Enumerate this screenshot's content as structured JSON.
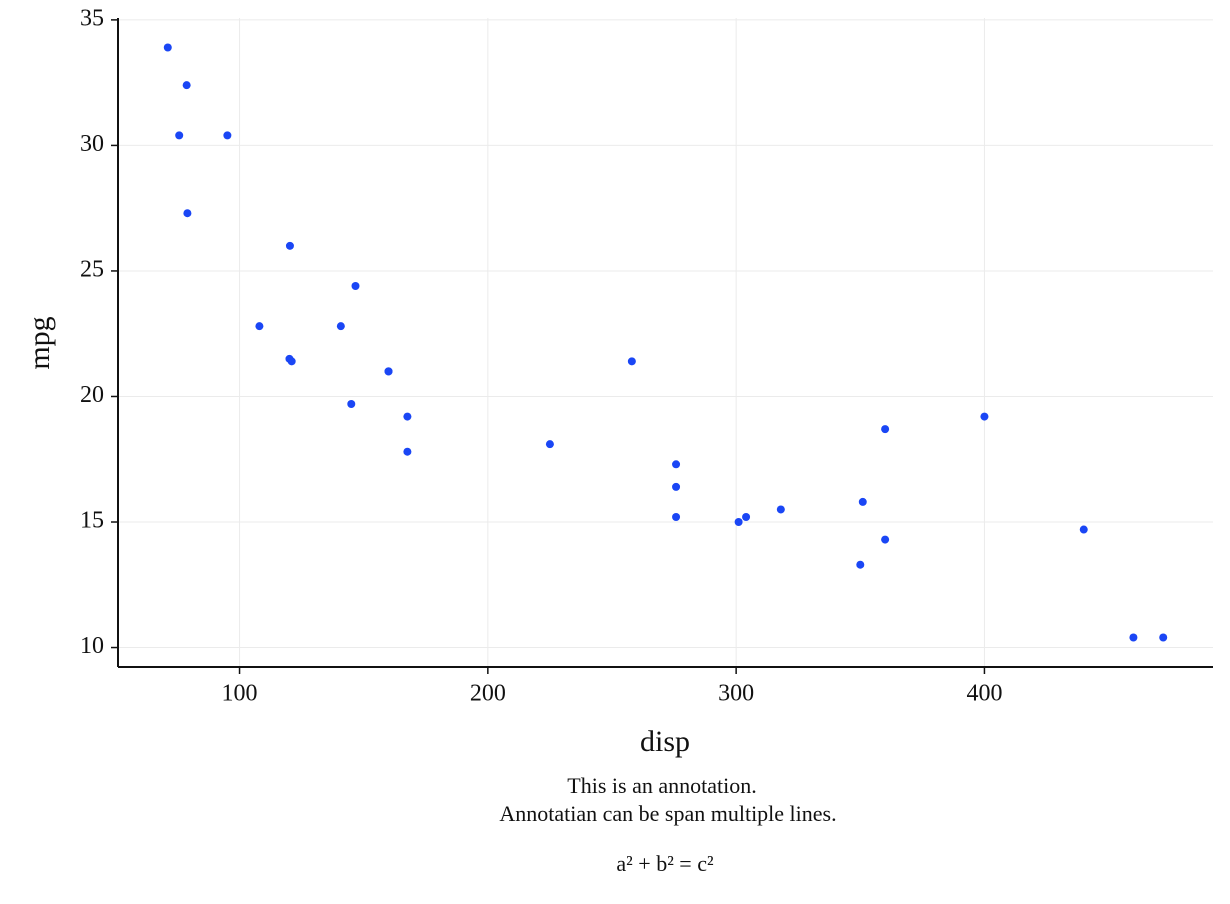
{
  "chart_data": {
    "type": "scatter",
    "x_label": "disp",
    "y_label": "mpg",
    "annotation_lines": [
      "This is an annotation.",
      "Annotatian can be span multiple lines."
    ],
    "annotation_formula": "a² + b² = c²",
    "color": "#1a46f5",
    "grid": true,
    "xlim": [
      51.05,
      492.05
    ],
    "ylim": [
      9.225,
      35.075
    ],
    "xticks": [
      100,
      200,
      300,
      400
    ],
    "yticks": [
      10,
      15,
      20,
      25,
      30,
      35
    ],
    "x": [
      160,
      160,
      108,
      258,
      360,
      225,
      360,
      146.7,
      140.8,
      167.6,
      167.6,
      275.8,
      275.8,
      275.8,
      472,
      460,
      440,
      78.7,
      75.7,
      71.1,
      120.1,
      318,
      304,
      350,
      400,
      79,
      120.3,
      95.1,
      351,
      145,
      301,
      121
    ],
    "values": [
      21.0,
      21.0,
      22.8,
      21.4,
      18.7,
      18.1,
      14.3,
      24.4,
      22.8,
      19.2,
      17.8,
      16.4,
      17.3,
      15.2,
      10.4,
      10.4,
      14.7,
      32.4,
      30.4,
      33.9,
      21.5,
      15.5,
      15.2,
      13.3,
      19.2,
      27.3,
      26.0,
      30.4,
      15.8,
      19.7,
      15.0,
      21.4
    ]
  }
}
